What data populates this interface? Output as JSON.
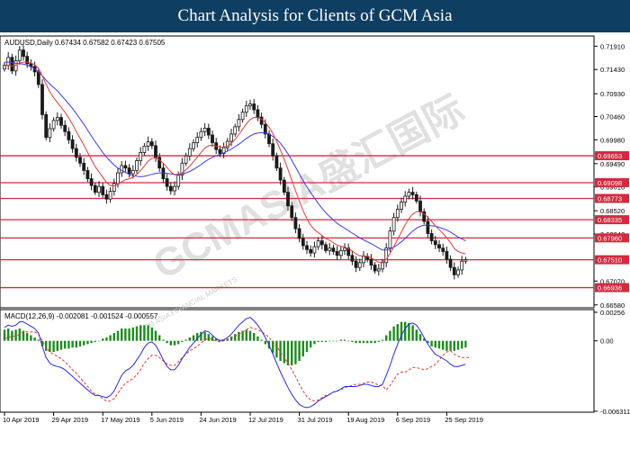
{
  "banner": {
    "title": "Chart Analysis for Clients of GCM Asia"
  },
  "chart_data": [
    {
      "type": "candlestick",
      "symbol_header": "AUDUSD,Daily  0.67434 0.67582 0.67423 0.67505",
      "watermark": "GCMASIA盛汇国际",
      "watermark_small": "GCM ASIA FINANCIAL MARKETS",
      "colors": {
        "candle": "#1a1a1a",
        "ma_fast": "#e03a3a",
        "ma_slow": "#3a3ae6",
        "level_line": "#d22a40",
        "level_label_bg": "#d22a40",
        "grid": "#ffffff"
      },
      "y_ticks": [
        "0.71910",
        "0.71430",
        "0.70930",
        "0.70460",
        "0.69980",
        "0.69490",
        "0.69010",
        "0.68520",
        "0.68040",
        "0.67070",
        "0.66580"
      ],
      "ylim": [
        0.6652,
        0.7212
      ],
      "levels": [
        "0.69653",
        "0.69098",
        "0.68773",
        "0.68335",
        "0.67960",
        "0.67510",
        "0.66936"
      ],
      "x_ticks": [
        "10 Apr 2019",
        "29 Apr 2019",
        "17 May 2019",
        "5 Jun 2019",
        "24 Jun 2019",
        "12 Jul 2019",
        "31 Jul 2019",
        "19 Aug 2019",
        "6 Sep 2019",
        "25 Sep 2019"
      ],
      "x_tick_index": [
        0,
        13,
        26,
        39,
        52,
        65,
        78,
        91,
        104,
        117
      ],
      "closes": [
        0.7152,
        0.7168,
        0.714,
        0.7161,
        0.7183,
        0.717,
        0.7155,
        0.7149,
        0.7138,
        0.7112,
        0.705,
        0.7003,
        0.7021,
        0.7038,
        0.7044,
        0.7028,
        0.7015,
        0.6998,
        0.698,
        0.6962,
        0.695,
        0.6935,
        0.6918,
        0.6904,
        0.689,
        0.6902,
        0.6885,
        0.6876,
        0.6892,
        0.6908,
        0.693,
        0.6945,
        0.694,
        0.6928,
        0.6935,
        0.6955,
        0.6972,
        0.6985,
        0.6994,
        0.6986,
        0.6962,
        0.694,
        0.6918,
        0.6902,
        0.6893,
        0.6902,
        0.6925,
        0.695,
        0.6965,
        0.698,
        0.6992,
        0.7003,
        0.7015,
        0.7022,
        0.7008,
        0.6992,
        0.6978,
        0.697,
        0.6982,
        0.6995,
        0.701,
        0.7025,
        0.704,
        0.7055,
        0.7068,
        0.7072,
        0.706,
        0.7045,
        0.703,
        0.701,
        0.699,
        0.6965,
        0.694,
        0.6915,
        0.689,
        0.6862,
        0.6838,
        0.6815,
        0.6795,
        0.678,
        0.6772,
        0.6765,
        0.6778,
        0.679,
        0.6782,
        0.677,
        0.6775,
        0.6768,
        0.676,
        0.677,
        0.6775,
        0.676,
        0.6748,
        0.6735,
        0.6745,
        0.6758,
        0.6752,
        0.674,
        0.6728,
        0.6732,
        0.6745,
        0.6775,
        0.681,
        0.6838,
        0.6855,
        0.687,
        0.6882,
        0.689,
        0.6885,
        0.6872,
        0.685,
        0.683,
        0.6805,
        0.679,
        0.6782,
        0.6775,
        0.6768,
        0.6752,
        0.6735,
        0.672,
        0.673,
        0.6748,
        0.6751
      ],
      "ma_fast": [
        0.715,
        0.7152,
        0.715,
        0.7152,
        0.7156,
        0.7158,
        0.7158,
        0.7156,
        0.7153,
        0.7145,
        0.713,
        0.7112,
        0.7097,
        0.7085,
        0.7075,
        0.7065,
        0.7055,
        0.7043,
        0.703,
        0.7015,
        0.7001,
        0.6987,
        0.6972,
        0.6957,
        0.6943,
        0.6932,
        0.6921,
        0.691,
        0.6904,
        0.6903,
        0.6906,
        0.6912,
        0.6916,
        0.6918,
        0.6921,
        0.6927,
        0.6935,
        0.6944,
        0.6954,
        0.696,
        0.6961,
        0.6957,
        0.695,
        0.6941,
        0.6932,
        0.6926,
        0.6926,
        0.693,
        0.6936,
        0.6944,
        0.6953,
        0.6962,
        0.6972,
        0.6981,
        0.6986,
        0.6987,
        0.6985,
        0.6983,
        0.6983,
        0.6985,
        0.6991,
        0.6999,
        0.7009,
        0.702,
        0.7031,
        0.704,
        0.7044,
        0.7044,
        0.7041,
        0.7034,
        0.7024,
        0.7011,
        0.6995,
        0.6977,
        0.6958,
        0.6937,
        0.6915,
        0.6893,
        0.6872,
        0.6852,
        0.6836,
        0.6822,
        0.6813,
        0.6807,
        0.6801,
        0.6795,
        0.6791,
        0.6786,
        0.6781,
        0.6779,
        0.6777,
        0.6774,
        0.6769,
        0.6763,
        0.6759,
        0.6759,
        0.6758,
        0.6755,
        0.675,
        0.6746,
        0.6746,
        0.6752,
        0.6764,
        0.6778,
        0.6793,
        0.6808,
        0.6823,
        0.6836,
        0.6845,
        0.685,
        0.685,
        0.6846,
        0.6838,
        0.683,
        0.6821,
        0.6813,
        0.6805,
        0.6796,
        0.6786,
        0.6774,
        0.6768,
        0.6765,
        0.6763
      ],
      "ma_slow": [
        0.7158,
        0.7158,
        0.7157,
        0.7156,
        0.7155,
        0.7154,
        0.7152,
        0.7149,
        0.7144,
        0.7138,
        0.713,
        0.7121,
        0.7113,
        0.7106,
        0.7099,
        0.709,
        0.7081,
        0.7072,
        0.7063,
        0.7052,
        0.7041,
        0.703,
        0.7018,
        0.7006,
        0.6994,
        0.6983,
        0.6972,
        0.6962,
        0.6954,
        0.6946,
        0.694,
        0.6935,
        0.6931,
        0.6927,
        0.6924,
        0.6923,
        0.6922,
        0.6923,
        0.6925,
        0.6927,
        0.6929,
        0.693,
        0.693,
        0.6929,
        0.6928,
        0.6927,
        0.6927,
        0.6928,
        0.693,
        0.6933,
        0.6937,
        0.6942,
        0.6947,
        0.6953,
        0.6958,
        0.6962,
        0.6965,
        0.6968,
        0.6971,
        0.6975,
        0.6979,
        0.6984,
        0.6989,
        0.6995,
        0.7001,
        0.7006,
        0.701,
        0.7012,
        0.7013,
        0.7012,
        0.701,
        0.7005,
        0.6999,
        0.6991,
        0.6981,
        0.6969,
        0.6956,
        0.6942,
        0.6928,
        0.6914,
        0.6901,
        0.6889,
        0.6878,
        0.6867,
        0.6857,
        0.6848,
        0.684,
        0.6833,
        0.6826,
        0.6821,
        0.6816,
        0.6811,
        0.6806,
        0.6801,
        0.6796,
        0.6792,
        0.6788,
        0.6784,
        0.678,
        0.6775,
        0.6771,
        0.6771,
        0.6773,
        0.6777,
        0.6782,
        0.6788,
        0.6795,
        0.6803,
        0.681,
        0.6816,
        0.682,
        0.6822,
        0.6822,
        0.6821,
        0.682,
        0.6818,
        0.6815,
        0.6812,
        0.6808,
        0.6803,
        0.6798,
        0.6794,
        0.679
      ]
    },
    {
      "type": "macd",
      "header": "MACD(12,26,9) -0.002081 -0.001524 -0.000557",
      "y_ticks": [
        "0.00256",
        "0.00",
        "-0.006311"
      ],
      "ylim": [
        -0.0064,
        0.0028
      ],
      "colors": {
        "histogram": "#1f8c1f",
        "macd": "#2a2ad6",
        "signal": "#e03a3a"
      },
      "histogram": [
        0.001,
        0.0011,
        0.0009,
        0.001,
        0.0011,
        0.0009,
        0.0007,
        0.0005,
        0.0003,
        0.0001,
        -0.0005,
        -0.0009,
        -0.001,
        -0.001,
        -0.0009,
        -0.0008,
        -0.0007,
        -0.0007,
        -0.0006,
        -0.0006,
        -0.0005,
        -0.0004,
        -0.0003,
        -0.0002,
        -0.0001,
        0.0,
        0.0002,
        0.0003,
        0.0005,
        0.0007,
        0.0009,
        0.0011,
        0.0011,
        0.0011,
        0.0012,
        0.0013,
        0.0014,
        0.0014,
        0.0014,
        0.0012,
        0.0009,
        0.0005,
        0.0001,
        -0.0002,
        -0.0004,
        -0.0004,
        -0.0003,
        -0.0001,
        0.0001,
        0.0003,
        0.0005,
        0.0007,
        0.0008,
        0.0008,
        0.0006,
        0.0004,
        0.0002,
        0.0001,
        0.0001,
        0.0002,
        0.0004,
        0.0006,
        0.0008,
        0.0009,
        0.001,
        0.0009,
        0.0007,
        0.0004,
        0.0001,
        -0.0003,
        -0.0007,
        -0.0011,
        -0.0015,
        -0.0018,
        -0.002,
        -0.0022,
        -0.0022,
        -0.0021,
        -0.0018,
        -0.0014,
        -0.001,
        -0.0006,
        -0.0003,
        -0.0001,
        -0.0001,
        -0.0001,
        0.0,
        0.0,
        0.0,
        0.0001,
        0.0001,
        0.0,
        -0.0001,
        -0.0002,
        -0.0002,
        -0.0002,
        -0.0002,
        -0.0002,
        -0.0002,
        -0.0001,
        0.0001,
        0.0005,
        0.0009,
        0.0013,
        0.0015,
        0.0017,
        0.0017,
        0.0016,
        0.0014,
        0.001,
        0.0006,
        0.0002,
        -0.0002,
        -0.0005,
        -0.0006,
        -0.0007,
        -0.0008,
        -0.0009,
        -0.0009,
        -0.0009,
        -0.0008,
        -0.0007,
        -0.0006
      ],
      "macd": [
        0.0012,
        0.0014,
        0.0013,
        0.0014,
        0.0017,
        0.0017,
        0.0015,
        0.0013,
        0.0011,
        0.0007,
        -0.0005,
        -0.0015,
        -0.002,
        -0.0022,
        -0.0023,
        -0.0024,
        -0.0026,
        -0.0029,
        -0.0032,
        -0.0035,
        -0.0038,
        -0.0041,
        -0.0044,
        -0.0047,
        -0.0049,
        -0.0049,
        -0.005,
        -0.0051,
        -0.0049,
        -0.0045,
        -0.0038,
        -0.0031,
        -0.0027,
        -0.0025,
        -0.0022,
        -0.0017,
        -0.0012,
        -0.0006,
        -0.0002,
        -0.0001,
        -0.0004,
        -0.001,
        -0.0017,
        -0.0023,
        -0.0026,
        -0.0026,
        -0.0022,
        -0.0016,
        -0.0011,
        -0.0006,
        -0.0002,
        0.0002,
        0.0006,
        0.0009,
        0.0008,
        0.0005,
        0.0002,
        0.0,
        0.0001,
        0.0003,
        0.0006,
        0.001,
        0.0014,
        0.0017,
        0.002,
        0.0021,
        0.0018,
        0.0014,
        0.0009,
        0.0003,
        -0.0004,
        -0.0012,
        -0.002,
        -0.0028,
        -0.0035,
        -0.0042,
        -0.0048,
        -0.0053,
        -0.0057,
        -0.0059,
        -0.006,
        -0.0059,
        -0.0057,
        -0.0054,
        -0.0052,
        -0.005,
        -0.0048,
        -0.0046,
        -0.0045,
        -0.0043,
        -0.0041,
        -0.0041,
        -0.0041,
        -0.0041,
        -0.004,
        -0.0039,
        -0.0039,
        -0.004,
        -0.0041,
        -0.0041,
        -0.0039,
        -0.0031,
        -0.0022,
        -0.0012,
        -0.0003,
        0.0005,
        0.0011,
        0.0015,
        0.0016,
        0.0014,
        0.0009,
        0.0003,
        -0.0003,
        -0.0008,
        -0.0012,
        -0.0014,
        -0.0016,
        -0.0018,
        -0.0021,
        -0.0023,
        -0.0023,
        -0.0022,
        -0.0021
      ],
      "signal": [
        0.0002,
        0.0003,
        0.0004,
        0.0004,
        0.0006,
        0.0008,
        0.0008,
        0.0008,
        0.0008,
        0.0006,
        0.0,
        -0.0006,
        -0.001,
        -0.0012,
        -0.0014,
        -0.0016,
        -0.0019,
        -0.0022,
        -0.0026,
        -0.0029,
        -0.0033,
        -0.0037,
        -0.0041,
        -0.0045,
        -0.0048,
        -0.0049,
        -0.0052,
        -0.0054,
        -0.0054,
        -0.0052,
        -0.0047,
        -0.0042,
        -0.0038,
        -0.0036,
        -0.0034,
        -0.003,
        -0.0026,
        -0.002,
        -0.0016,
        -0.0013,
        -0.0013,
        -0.0015,
        -0.0018,
        -0.0021,
        -0.0022,
        -0.0022,
        -0.0019,
        -0.0015,
        -0.0012,
        -0.0009,
        -0.0007,
        -0.0005,
        -0.0002,
        0.0001,
        0.0002,
        0.0001,
        0.0,
        -0.0001,
        0.0,
        0.0001,
        0.0002,
        0.0004,
        0.0006,
        0.0008,
        0.001,
        0.0012,
        0.0011,
        0.001,
        0.0008,
        0.0006,
        0.0003,
        -0.0001,
        -0.0005,
        -0.001,
        -0.0015,
        -0.002,
        -0.0026,
        -0.0032,
        -0.0039,
        -0.0045,
        -0.005,
        -0.0053,
        -0.0054,
        -0.0053,
        -0.0051,
        -0.0049,
        -0.0048,
        -0.0046,
        -0.0045,
        -0.0044,
        -0.0042,
        -0.0041,
        -0.004,
        -0.0039,
        -0.0039,
        -0.0038,
        -0.0037,
        -0.0037,
        -0.0038,
        -0.004,
        -0.004,
        -0.0044,
        -0.004,
        -0.0035,
        -0.003,
        -0.0028,
        -0.0028,
        -0.0026,
        -0.0024,
        -0.0024,
        -0.0025,
        -0.0026,
        -0.0025,
        -0.0023,
        -0.0021,
        -0.0017,
        -0.0013,
        -0.001,
        -0.0009,
        -0.0012,
        -0.0014,
        -0.0015,
        -0.0015,
        -0.0015
      ]
    }
  ]
}
